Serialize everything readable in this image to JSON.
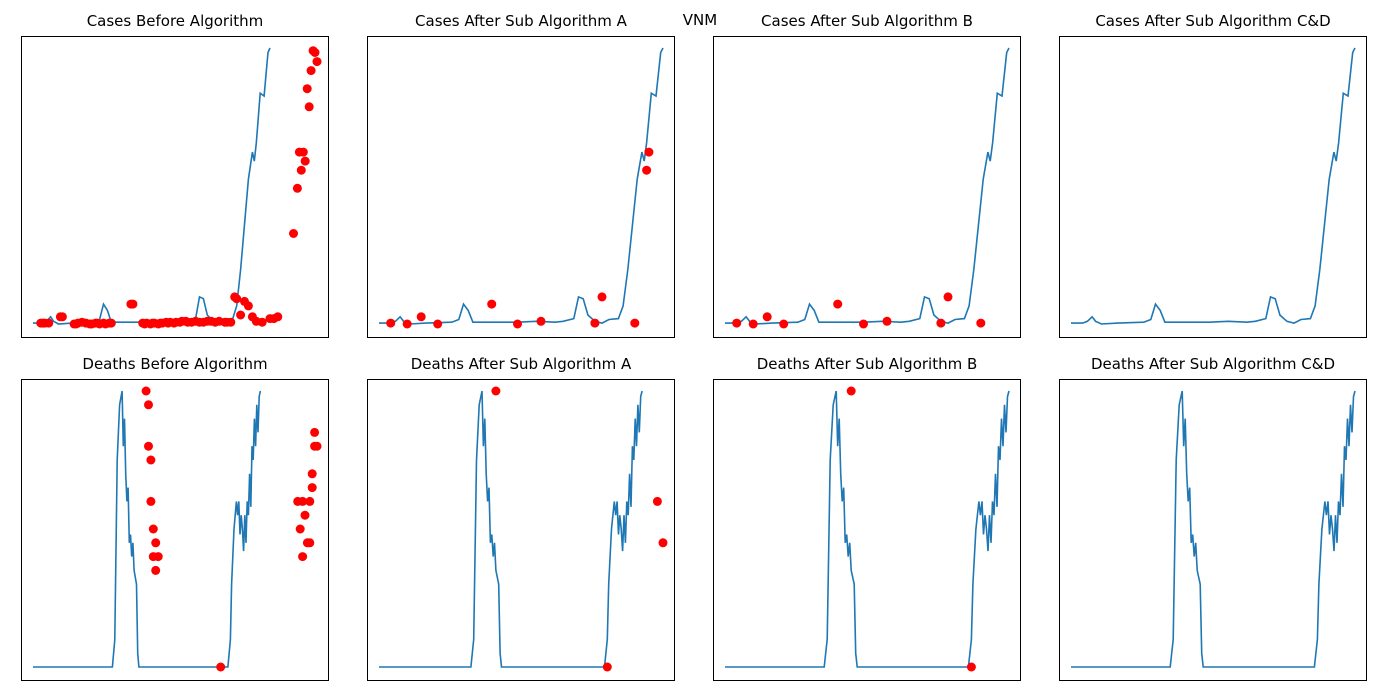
{
  "suptitle": "VNM",
  "chart_data": [
    {
      "type": "line",
      "title": "Cases Before Algorithm",
      "signal": "cases",
      "anomalies": "cases_all"
    },
    {
      "type": "line",
      "title": "Cases After Sub Algorithm A",
      "signal": "cases",
      "anomalies": "cases_A"
    },
    {
      "type": "line",
      "title": "Cases After Sub Algorithm B",
      "signal": "cases",
      "anomalies": "cases_B"
    },
    {
      "type": "line",
      "title": "Cases After Sub Algorithm C&D",
      "signal": "cases",
      "anomalies": "none"
    },
    {
      "type": "line",
      "title": "Deaths Before Algorithm",
      "signal": "deaths",
      "anomalies": "deaths_all"
    },
    {
      "type": "line",
      "title": "Deaths After Sub Algorithm A",
      "signal": "deaths",
      "anomalies": "deaths_A"
    },
    {
      "type": "line",
      "title": "Deaths After Sub Algorithm B",
      "signal": "deaths",
      "anomalies": "deaths_B"
    },
    {
      "type": "line",
      "title": "Deaths After Sub Algorithm C&D",
      "signal": "deaths",
      "anomalies": "none"
    }
  ],
  "series": {
    "cases": [
      [
        0,
        1
      ],
      [
        10,
        1
      ],
      [
        14,
        3
      ],
      [
        18,
        8
      ],
      [
        21,
        3
      ],
      [
        26,
        0
      ],
      [
        40,
        1
      ],
      [
        62,
        2
      ],
      [
        68,
        5
      ],
      [
        72,
        22
      ],
      [
        76,
        15
      ],
      [
        80,
        2
      ],
      [
        100,
        2
      ],
      [
        118,
        2
      ],
      [
        134,
        3
      ],
      [
        150,
        2
      ],
      [
        157,
        3
      ],
      [
        166,
        6
      ],
      [
        170,
        30
      ],
      [
        174,
        28
      ],
      [
        178,
        10
      ],
      [
        184,
        3
      ],
      [
        190,
        1
      ],
      [
        196,
        5
      ],
      [
        204,
        6
      ],
      [
        208,
        20
      ],
      [
        212,
        60
      ],
      [
        216,
        110
      ],
      [
        220,
        160
      ],
      [
        224,
        190
      ],
      [
        226,
        180
      ],
      [
        228,
        200
      ],
      [
        232,
        255
      ],
      [
        236,
        252
      ],
      [
        240,
        300
      ],
      [
        242,
        305
      ]
    ],
    "deaths": [
      [
        0,
        0
      ],
      [
        66,
        0
      ],
      [
        68,
        10
      ],
      [
        70,
        75
      ],
      [
        72,
        95
      ],
      [
        74,
        100
      ],
      [
        75,
        80
      ],
      [
        76,
        90
      ],
      [
        77,
        70
      ],
      [
        78,
        60
      ],
      [
        79,
        65
      ],
      [
        80,
        45
      ],
      [
        81,
        48
      ],
      [
        82,
        40
      ],
      [
        83,
        45
      ],
      [
        84,
        35
      ],
      [
        86,
        30
      ],
      [
        87,
        5
      ],
      [
        88,
        0
      ],
      [
        162,
        0
      ],
      [
        164,
        10
      ],
      [
        165,
        30
      ],
      [
        166,
        40
      ],
      [
        167,
        50
      ],
      [
        168,
        55
      ],
      [
        169,
        60
      ],
      [
        170,
        55
      ],
      [
        171,
        60
      ],
      [
        172,
        48
      ],
      [
        173,
        55
      ],
      [
        174,
        50
      ],
      [
        175,
        42
      ],
      [
        176,
        55
      ],
      [
        177,
        45
      ],
      [
        178,
        60
      ],
      [
        179,
        55
      ],
      [
        180,
        70
      ],
      [
        181,
        58
      ],
      [
        182,
        80
      ],
      [
        183,
        75
      ],
      [
        184,
        90
      ],
      [
        185,
        80
      ],
      [
        186,
        95
      ],
      [
        187,
        85
      ],
      [
        188,
        98
      ],
      [
        189,
        100
      ]
    ],
    "cases_all": [
      [
        8,
        1
      ],
      [
        10,
        1
      ],
      [
        12,
        1
      ],
      [
        16,
        1
      ],
      [
        28,
        8
      ],
      [
        30,
        8
      ],
      [
        42,
        0
      ],
      [
        44,
        0
      ],
      [
        46,
        1
      ],
      [
        50,
        2
      ],
      [
        54,
        1
      ],
      [
        58,
        0
      ],
      [
        60,
        0
      ],
      [
        64,
        1
      ],
      [
        66,
        1
      ],
      [
        68,
        0
      ],
      [
        72,
        1
      ],
      [
        74,
        0
      ],
      [
        78,
        1
      ],
      [
        80,
        1
      ],
      [
        100,
        22
      ],
      [
        102,
        22
      ],
      [
        112,
        1
      ],
      [
        114,
        0
      ],
      [
        116,
        1
      ],
      [
        120,
        0
      ],
      [
        122,
        1
      ],
      [
        124,
        1
      ],
      [
        128,
        0
      ],
      [
        130,
        1
      ],
      [
        132,
        1
      ],
      [
        136,
        2
      ],
      [
        138,
        1
      ],
      [
        140,
        2
      ],
      [
        144,
        1
      ],
      [
        146,
        2
      ],
      [
        150,
        2
      ],
      [
        152,
        3
      ],
      [
        156,
        3
      ],
      [
        158,
        2
      ],
      [
        162,
        2
      ],
      [
        166,
        3
      ],
      [
        170,
        2
      ],
      [
        174,
        2
      ],
      [
        178,
        3
      ],
      [
        182,
        3
      ],
      [
        186,
        2
      ],
      [
        190,
        3
      ],
      [
        196,
        2
      ],
      [
        198,
        2
      ],
      [
        202,
        2
      ],
      [
        206,
        30
      ],
      [
        208,
        28
      ],
      [
        212,
        10
      ],
      [
        216,
        25
      ],
      [
        220,
        20
      ],
      [
        224,
        8
      ],
      [
        228,
        3
      ],
      [
        234,
        2
      ],
      [
        242,
        6
      ],
      [
        246,
        6
      ],
      [
        250,
        8
      ],
      [
        266,
        100
      ],
      [
        270,
        150
      ],
      [
        272,
        190
      ],
      [
        274,
        170
      ],
      [
        276,
        190
      ],
      [
        278,
        180
      ],
      [
        280,
        260
      ],
      [
        282,
        240
      ],
      [
        284,
        280
      ],
      [
        286,
        302
      ],
      [
        288,
        300
      ],
      [
        290,
        290
      ]
    ],
    "cases_A": [
      [
        10,
        1
      ],
      [
        24,
        0
      ],
      [
        36,
        8
      ],
      [
        50,
        0
      ],
      [
        96,
        22
      ],
      [
        118,
        0
      ],
      [
        138,
        3
      ],
      [
        184,
        1
      ],
      [
        190,
        30
      ],
      [
        218,
        1
      ],
      [
        228,
        170
      ],
      [
        230,
        190
      ]
    ],
    "cases_B": [
      [
        10,
        1
      ],
      [
        24,
        0
      ],
      [
        36,
        8
      ],
      [
        50,
        0
      ],
      [
        96,
        22
      ],
      [
        118,
        0
      ],
      [
        138,
        3
      ],
      [
        184,
        1
      ],
      [
        190,
        30
      ],
      [
        218,
        1
      ]
    ],
    "deaths_all": [
      [
        94,
        100
      ],
      [
        96,
        95
      ],
      [
        96,
        80
      ],
      [
        98,
        75
      ],
      [
        98,
        60
      ],
      [
        100,
        50
      ],
      [
        100,
        40
      ],
      [
        102,
        45
      ],
      [
        102,
        35
      ],
      [
        104,
        40
      ],
      [
        156,
        0
      ],
      [
        220,
        60
      ],
      [
        222,
        50
      ],
      [
        224,
        60
      ],
      [
        224,
        40
      ],
      [
        226,
        55
      ],
      [
        228,
        45
      ],
      [
        230,
        45
      ],
      [
        230,
        60
      ],
      [
        232,
        65
      ],
      [
        232,
        70
      ],
      [
        234,
        80
      ],
      [
        234,
        85
      ],
      [
        236,
        80
      ]
    ],
    "deaths_A": [
      [
        84,
        100
      ],
      [
        164,
        0
      ],
      [
        200,
        60
      ],
      [
        204,
        45
      ]
    ],
    "deaths_B": [
      [
        84,
        100
      ],
      [
        164,
        0
      ]
    ],
    "none": []
  }
}
